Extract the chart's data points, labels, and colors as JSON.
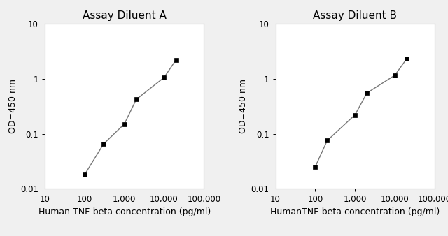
{
  "panel_a": {
    "title": "Assay Diluent A",
    "xlabel": "Human TNF-beta concentration (pg/ml)",
    "ylabel": "OD=450 nm",
    "x": [
      100,
      300,
      1000,
      2000,
      10000,
      20000
    ],
    "y": [
      0.018,
      0.065,
      0.15,
      0.42,
      1.05,
      2.2
    ]
  },
  "panel_b": {
    "title": "Assay Diluent B",
    "xlabel": "HumanTNF-beta concentration (pg/ml)",
    "ylabel": "OD=450 nm",
    "x": [
      100,
      200,
      1000,
      2000,
      10000,
      20000
    ],
    "y": [
      0.025,
      0.075,
      0.22,
      0.55,
      1.15,
      2.3
    ]
  },
  "xlim": [
    10,
    100000
  ],
  "ylim": [
    0.01,
    10
  ],
  "xticks": [
    10,
    100,
    1000,
    10000,
    100000
  ],
  "xtick_labels": [
    "10",
    "100",
    "1,000",
    "10,000",
    "100,000"
  ],
  "yticks": [
    0.01,
    0.1,
    1,
    10
  ],
  "ytick_labels": [
    "0.01",
    "0.1",
    "1",
    "10"
  ],
  "line_color": "#777777",
  "marker_color": "black",
  "marker_size": 5,
  "background_color": "#f0f0f0",
  "title_fontsize": 11,
  "label_fontsize": 9,
  "tick_fontsize": 8.5
}
